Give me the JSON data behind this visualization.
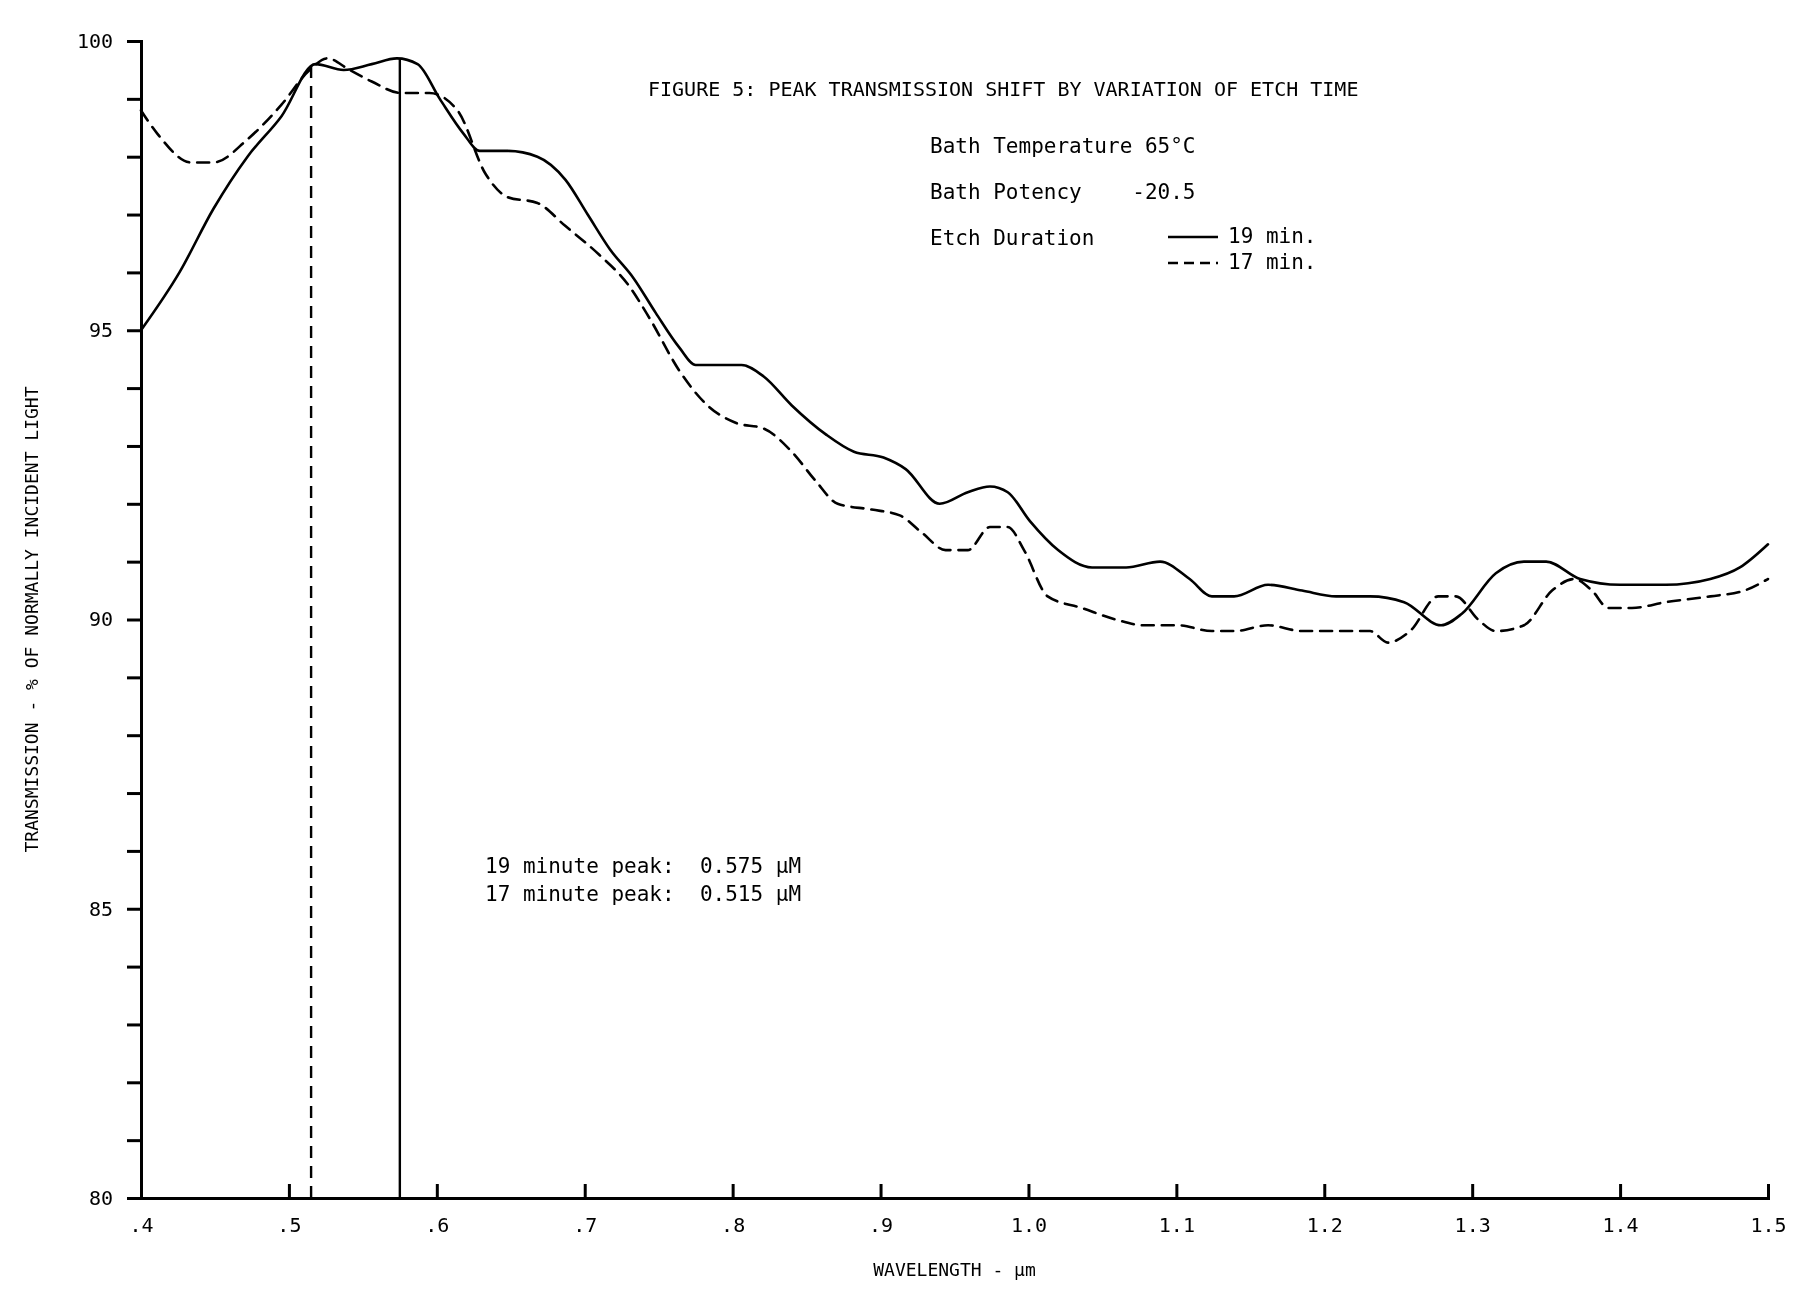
{
  "chart_data": {
    "type": "line",
    "title": "FIGURE 5:  PEAK TRANSMISSION SHIFT BY VARIATION OF ETCH TIME",
    "xlabel": "WAVELENGTH - µm",
    "ylabel": "TRANSMISSION - % OF NORMALLY INCIDENT LIGHT",
    "legend_title": "Etch Duration",
    "legend": "top right",
    "grid": false,
    "marker": "none",
    "annotations": [
      "Bath Temperature 65°C",
      "Bath Potency    -20.5",
      "19 minute peak:  0.575 µM",
      "17 minute peak:  0.515 µM"
    ],
    "xlim": [
      0.4,
      1.5
    ],
    "xticks": [
      {
        "value": 0.4,
        "label": ".4"
      },
      {
        "value": 0.5,
        "label": ".5"
      },
      {
        "value": 0.6,
        "label": ".6"
      },
      {
        "value": 0.7,
        "label": ".7"
      },
      {
        "value": 0.8,
        "label": ".8"
      },
      {
        "value": 0.9,
        "label": ".9"
      },
      {
        "value": 1.0,
        "label": "1.0"
      },
      {
        "value": 1.1,
        "label": "1.1"
      },
      {
        "value": 1.2,
        "label": "1.2"
      },
      {
        "value": 1.3,
        "label": "1.3"
      },
      {
        "value": 1.4,
        "label": "1.4"
      },
      {
        "value": 1.5,
        "label": "1.5"
      }
    ],
    "ylim": [
      80,
      100
    ],
    "yticks": [
      80,
      {
        "value": 81,
        "label": null
      },
      {
        "value": 82,
        "label": null
      },
      {
        "value": 83,
        "label": null
      },
      {
        "value": 84,
        "label": null
      },
      85,
      {
        "value": 86,
        "label": null
      },
      {
        "value": 87,
        "label": null
      },
      {
        "value": 88,
        "label": null
      },
      {
        "value": 89,
        "label": null
      },
      90,
      {
        "value": 91,
        "label": null
      },
      {
        "value": 92,
        "label": null
      },
      {
        "value": 93,
        "label": null
      },
      {
        "value": 94,
        "label": null
      },
      95,
      {
        "value": 96,
        "label": null
      },
      {
        "value": 97,
        "label": null
      },
      {
        "value": 98,
        "label": null
      },
      {
        "value": 99,
        "label": null
      },
      100
    ],
    "ref_lines": [
      {
        "axis": "x",
        "value": 0.575,
        "label": null,
        "line_style": "solid",
        "color": "#000000"
      },
      {
        "axis": "x",
        "value": 0.515,
        "label": null,
        "line_style": "dashed",
        "color": "#000000"
      }
    ],
    "series": [
      {
        "name": "19 min.",
        "color": "#000000",
        "line_style": "solid",
        "x": [
          0.4,
          0.426,
          0.449,
          0.472,
          0.495,
          0.518,
          0.537,
          0.556,
          0.573,
          0.587,
          0.602,
          0.618,
          0.629,
          0.648,
          0.668,
          0.687,
          0.702,
          0.717,
          0.733,
          0.748,
          0.764,
          0.775,
          0.794,
          0.806,
          0.821,
          0.84,
          0.863,
          0.882,
          0.902,
          0.917,
          0.94,
          0.959,
          0.974,
          0.986,
          1.001,
          1.02,
          1.043,
          1.066,
          1.089,
          1.109,
          1.124,
          1.139,
          1.162,
          1.185,
          1.208,
          1.231,
          1.254,
          1.279,
          1.293,
          1.316,
          1.335,
          1.35,
          1.373,
          1.4,
          1.431,
          1.461,
          1.481,
          1.5
        ],
        "values": [
          95.0,
          96.0,
          97.1,
          98.0,
          98.7,
          99.6,
          99.5,
          99.6,
          99.7,
          99.6,
          99.0,
          98.4,
          98.1,
          98.1,
          98.0,
          97.6,
          97.0,
          96.4,
          95.9,
          95.3,
          94.7,
          94.4,
          94.4,
          94.4,
          94.2,
          93.7,
          93.2,
          92.9,
          92.8,
          92.6,
          92.0,
          92.2,
          92.3,
          92.2,
          91.7,
          91.2,
          90.9,
          90.9,
          91.0,
          90.7,
          90.4,
          90.4,
          90.6,
          90.5,
          90.4,
          90.4,
          90.3,
          89.9,
          90.1,
          90.8,
          91.0,
          91.0,
          90.7,
          90.6,
          90.6,
          90.7,
          90.9,
          91.3
        ]
      },
      {
        "name": "17 min.",
        "color": "#000000",
        "line_style": "dashed",
        "x": [
          0.4,
          0.411,
          0.434,
          0.449,
          0.472,
          0.495,
          0.514,
          0.526,
          0.541,
          0.556,
          0.576,
          0.595,
          0.614,
          0.633,
          0.648,
          0.668,
          0.687,
          0.71,
          0.729,
          0.744,
          0.764,
          0.783,
          0.802,
          0.821,
          0.84,
          0.856,
          0.871,
          0.894,
          0.913,
          0.928,
          0.944,
          0.959,
          0.974,
          0.986,
          0.997,
          1.013,
          1.036,
          1.059,
          1.078,
          1.101,
          1.124,
          1.139,
          1.162,
          1.185,
          1.208,
          1.231,
          1.243,
          1.258,
          1.277,
          1.289,
          1.304,
          1.316,
          1.335,
          1.354,
          1.369,
          1.381,
          1.392,
          1.408,
          1.431,
          1.461,
          1.484,
          1.5
        ],
        "values": [
          98.8,
          98.4,
          97.9,
          97.9,
          98.3,
          98.9,
          99.5,
          99.7,
          99.5,
          99.3,
          99.1,
          99.1,
          98.8,
          97.7,
          97.3,
          97.2,
          96.8,
          96.3,
          95.8,
          95.2,
          94.3,
          93.7,
          93.4,
          93.3,
          92.9,
          92.4,
          92.0,
          91.9,
          91.8,
          91.5,
          91.2,
          91.2,
          91.6,
          91.6,
          91.2,
          90.4,
          90.2,
          90.0,
          89.9,
          89.9,
          89.8,
          89.8,
          89.9,
          89.8,
          89.8,
          89.8,
          89.6,
          89.8,
          90.4,
          90.4,
          90.0,
          89.8,
          89.9,
          90.5,
          90.7,
          90.5,
          90.2,
          90.2,
          90.3,
          90.4,
          90.5,
          90.7
        ]
      }
    ]
  }
}
